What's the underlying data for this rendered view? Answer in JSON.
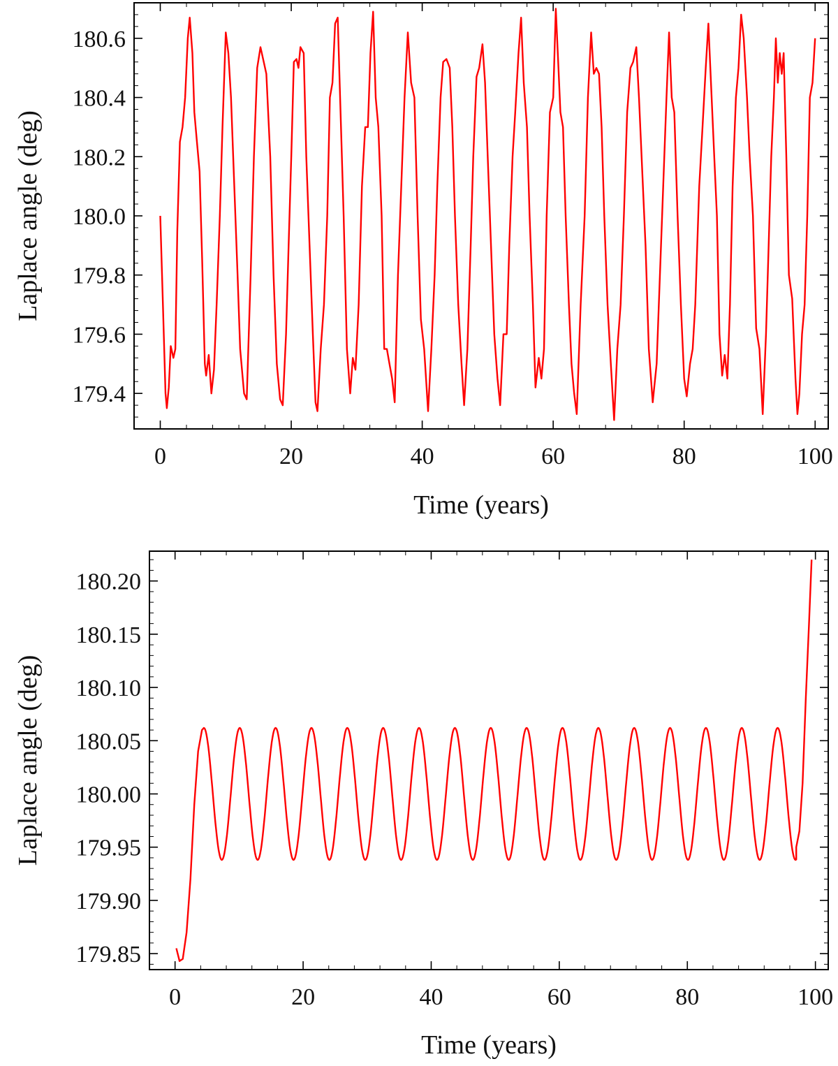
{
  "chart_data": [
    {
      "type": "line",
      "xlabel": "Time (years)",
      "ylabel": "Laplace angle (deg)",
      "xlim": [
        -4,
        102
      ],
      "ylim": [
        179.28,
        180.72
      ],
      "xticks": [
        "0",
        "20",
        "40",
        "60",
        "80",
        "100"
      ],
      "yticks": [
        "179.4",
        "179.6",
        "179.8",
        "180.0",
        "180.2",
        "180.4",
        "180.6"
      ],
      "grid": false,
      "series": [
        {
          "color": "#ff0000",
          "points": [
            [
              0.0,
              180.0
            ],
            [
              0.4,
              179.7
            ],
            [
              0.8,
              179.4
            ],
            [
              1.0,
              179.35
            ],
            [
              1.3,
              179.42
            ],
            [
              1.6,
              179.56
            ],
            [
              2.0,
              179.52
            ],
            [
              2.3,
              179.55
            ],
            [
              2.6,
              179.95
            ],
            [
              3.0,
              180.25
            ],
            [
              3.4,
              180.3
            ],
            [
              3.8,
              180.4
            ],
            [
              4.2,
              180.6
            ],
            [
              4.5,
              180.67
            ],
            [
              4.9,
              180.55
            ],
            [
              5.2,
              180.35
            ],
            [
              5.6,
              180.25
            ],
            [
              6.0,
              180.15
            ],
            [
              6.4,
              179.85
            ],
            [
              6.8,
              179.5
            ],
            [
              7.0,
              179.46
            ],
            [
              7.4,
              179.53
            ],
            [
              7.8,
              179.4
            ],
            [
              8.2,
              179.48
            ],
            [
              8.6,
              179.7
            ],
            [
              9.1,
              180.0
            ],
            [
              9.5,
              180.3
            ],
            [
              10.0,
              180.62
            ],
            [
              10.4,
              180.55
            ],
            [
              10.8,
              180.4
            ],
            [
              11.3,
              180.1
            ],
            [
              11.8,
              179.8
            ],
            [
              12.2,
              179.55
            ],
            [
              12.8,
              179.4
            ],
            [
              13.2,
              179.38
            ],
            [
              13.8,
              179.8
            ],
            [
              14.3,
              180.2
            ],
            [
              14.8,
              180.5
            ],
            [
              15.3,
              180.57
            ],
            [
              15.8,
              180.52
            ],
            [
              16.2,
              180.48
            ],
            [
              16.8,
              180.2
            ],
            [
              17.3,
              179.8
            ],
            [
              17.8,
              179.5
            ],
            [
              18.3,
              179.38
            ],
            [
              18.7,
              179.36
            ],
            [
              19.2,
              179.6
            ],
            [
              19.6,
              179.9
            ],
            [
              20.0,
              180.2
            ],
            [
              20.4,
              180.52
            ],
            [
              20.8,
              180.53
            ],
            [
              21.1,
              180.5
            ],
            [
              21.4,
              180.57
            ],
            [
              21.9,
              180.55
            ],
            [
              22.3,
              180.2
            ],
            [
              22.8,
              179.9
            ],
            [
              23.3,
              179.6
            ],
            [
              23.7,
              179.37
            ],
            [
              24.0,
              179.34
            ],
            [
              24.5,
              179.55
            ],
            [
              25.0,
              179.7
            ],
            [
              25.5,
              180.0
            ],
            [
              25.9,
              180.4
            ],
            [
              26.3,
              180.45
            ],
            [
              26.7,
              180.65
            ],
            [
              27.1,
              180.67
            ],
            [
              27.6,
              180.3
            ],
            [
              28.0,
              180.0
            ],
            [
              28.5,
              179.55
            ],
            [
              29.0,
              179.4
            ],
            [
              29.4,
              179.52
            ],
            [
              29.8,
              179.48
            ],
            [
              30.3,
              179.7
            ],
            [
              30.8,
              180.1
            ],
            [
              31.3,
              180.3
            ],
            [
              31.7,
              180.3
            ],
            [
              32.1,
              180.55
            ],
            [
              32.5,
              180.69
            ],
            [
              32.9,
              180.4
            ],
            [
              33.3,
              180.3
            ],
            [
              33.8,
              180.0
            ],
            [
              34.2,
              179.55
            ],
            [
              34.6,
              179.55
            ],
            [
              35.0,
              179.5
            ],
            [
              35.4,
              179.45
            ],
            [
              35.8,
              179.37
            ],
            [
              36.3,
              179.8
            ],
            [
              36.8,
              180.1
            ],
            [
              37.3,
              180.4
            ],
            [
              37.8,
              180.62
            ],
            [
              38.3,
              180.45
            ],
            [
              38.8,
              180.4
            ],
            [
              39.3,
              180.0
            ],
            [
              39.8,
              179.65
            ],
            [
              40.3,
              179.55
            ],
            [
              40.9,
              179.34
            ],
            [
              41.4,
              179.55
            ],
            [
              41.9,
              179.8
            ],
            [
              42.3,
              180.1
            ],
            [
              42.8,
              180.4
            ],
            [
              43.2,
              180.52
            ],
            [
              43.7,
              180.53
            ],
            [
              44.2,
              180.5
            ],
            [
              44.6,
              180.3
            ],
            [
              45.0,
              180.0
            ],
            [
              45.5,
              179.7
            ],
            [
              46.0,
              179.5
            ],
            [
              46.4,
              179.36
            ],
            [
              46.9,
              179.55
            ],
            [
              47.4,
              179.9
            ],
            [
              47.8,
              180.2
            ],
            [
              48.3,
              180.47
            ],
            [
              48.7,
              180.5
            ],
            [
              49.2,
              180.58
            ],
            [
              49.6,
              180.45
            ],
            [
              50.0,
              180.2
            ],
            [
              50.5,
              179.9
            ],
            [
              51.0,
              179.6
            ],
            [
              51.5,
              179.45
            ],
            [
              51.9,
              179.36
            ],
            [
              52.4,
              179.6
            ],
            [
              52.9,
              179.6
            ],
            [
              53.3,
              179.9
            ],
            [
              53.8,
              180.2
            ],
            [
              54.2,
              180.35
            ],
            [
              54.7,
              180.55
            ],
            [
              55.1,
              180.67
            ],
            [
              55.5,
              180.45
            ],
            [
              56.0,
              180.3
            ],
            [
              56.4,
              180.0
            ],
            [
              56.9,
              179.7
            ],
            [
              57.3,
              179.42
            ],
            [
              57.8,
              179.52
            ],
            [
              58.2,
              179.45
            ],
            [
              58.6,
              179.55
            ],
            [
              59.0,
              180.0
            ],
            [
              59.5,
              180.35
            ],
            [
              60.0,
              180.4
            ],
            [
              60.4,
              180.7
            ],
            [
              60.8,
              180.5
            ],
            [
              61.1,
              180.35
            ],
            [
              61.5,
              180.3
            ],
            [
              61.9,
              180.0
            ],
            [
              62.4,
              179.7
            ],
            [
              62.8,
              179.5
            ],
            [
              63.2,
              179.4
            ],
            [
              63.6,
              179.33
            ],
            [
              64.2,
              179.7
            ],
            [
              64.8,
              180.0
            ],
            [
              65.3,
              180.4
            ],
            [
              65.8,
              180.62
            ],
            [
              66.2,
              180.48
            ],
            [
              66.6,
              180.5
            ],
            [
              67.0,
              180.48
            ],
            [
              67.4,
              180.3
            ],
            [
              67.8,
              180.0
            ],
            [
              68.3,
              179.7
            ],
            [
              68.8,
              179.5
            ],
            [
              69.3,
              179.31
            ],
            [
              69.8,
              179.55
            ],
            [
              70.3,
              179.7
            ],
            [
              70.8,
              180.0
            ],
            [
              71.3,
              180.35
            ],
            [
              71.8,
              180.5
            ],
            [
              72.2,
              180.52
            ],
            [
              72.7,
              180.57
            ],
            [
              73.1,
              180.4
            ],
            [
              73.6,
              180.15
            ],
            [
              74.1,
              179.9
            ],
            [
              74.6,
              179.55
            ],
            [
              75.2,
              179.37
            ],
            [
              75.8,
              179.5
            ],
            [
              76.3,
              179.8
            ],
            [
              76.8,
              180.1
            ],
            [
              77.3,
              180.4
            ],
            [
              77.7,
              180.62
            ],
            [
              78.1,
              180.4
            ],
            [
              78.5,
              180.35
            ],
            [
              79.0,
              180.0
            ],
            [
              79.5,
              179.7
            ],
            [
              80.0,
              179.45
            ],
            [
              80.4,
              179.39
            ],
            [
              80.9,
              179.5
            ],
            [
              81.3,
              179.55
            ],
            [
              81.7,
              179.7
            ],
            [
              82.3,
              180.1
            ],
            [
              82.8,
              180.3
            ],
            [
              83.3,
              180.5
            ],
            [
              83.7,
              180.65
            ],
            [
              84.1,
              180.45
            ],
            [
              84.6,
              180.2
            ],
            [
              85.0,
              180.0
            ],
            [
              85.4,
              179.6
            ],
            [
              85.8,
              179.46
            ],
            [
              86.2,
              179.53
            ],
            [
              86.6,
              179.45
            ],
            [
              87.0,
              179.7
            ],
            [
              87.4,
              180.1
            ],
            [
              87.9,
              180.4
            ],
            [
              88.3,
              180.5
            ],
            [
              88.7,
              180.68
            ],
            [
              89.1,
              180.6
            ],
            [
              89.6,
              180.4
            ],
            [
              90.0,
              180.2
            ],
            [
              90.5,
              180.0
            ],
            [
              91.0,
              179.62
            ],
            [
              91.5,
              179.55
            ],
            [
              92.0,
              179.33
            ],
            [
              92.5,
              179.6
            ],
            [
              92.9,
              179.9
            ],
            [
              93.3,
              180.2
            ],
            [
              93.7,
              180.4
            ],
            [
              94.0,
              180.6
            ],
            [
              94.3,
              180.45
            ],
            [
              94.6,
              180.55
            ],
            [
              94.9,
              180.48
            ],
            [
              95.2,
              180.55
            ],
            [
              95.6,
              180.2
            ],
            [
              96.0,
              179.8
            ],
            [
              96.5,
              179.72
            ],
            [
              97.0,
              179.45
            ],
            [
              97.3,
              179.33
            ],
            [
              97.6,
              179.4
            ],
            [
              98.0,
              179.6
            ],
            [
              98.4,
              179.7
            ],
            [
              98.8,
              180.0
            ],
            [
              99.2,
              180.4
            ],
            [
              99.6,
              180.45
            ],
            [
              100.0,
              180.6
            ]
          ]
        }
      ]
    },
    {
      "type": "line",
      "xlabel": "Time (years)",
      "ylabel": "Laplace angle (deg)",
      "xlim": [
        -4,
        102
      ],
      "ylim": [
        179.835,
        180.228
      ],
      "xticks": [
        "0",
        "20",
        "40",
        "60",
        "80",
        "100"
      ],
      "yticks": [
        "179.85",
        "179.90",
        "179.95",
        "180.00",
        "180.05",
        "180.10",
        "180.15",
        "180.20"
      ],
      "grid": false,
      "series": [
        {
          "color": "#ff0000",
          "baseline": 180.0,
          "amplitude": 0.062,
          "period_years": 5.6,
          "points": [
            [
              0.2,
              179.855
            ],
            [
              0.7,
              179.843
            ],
            [
              1.2,
              179.845
            ],
            [
              1.8,
              179.87
            ],
            [
              2.4,
              179.92
            ],
            [
              3.0,
              179.99
            ],
            [
              3.6,
              180.04
            ],
            [
              4.2,
              180.06
            ],
            [
              97.0,
              179.95
            ],
            [
              97.5,
              179.965
            ],
            [
              98.0,
              180.01
            ],
            [
              98.5,
              180.09
            ],
            [
              99.0,
              180.16
            ],
            [
              99.4,
              180.22
            ]
          ]
        }
      ]
    }
  ]
}
